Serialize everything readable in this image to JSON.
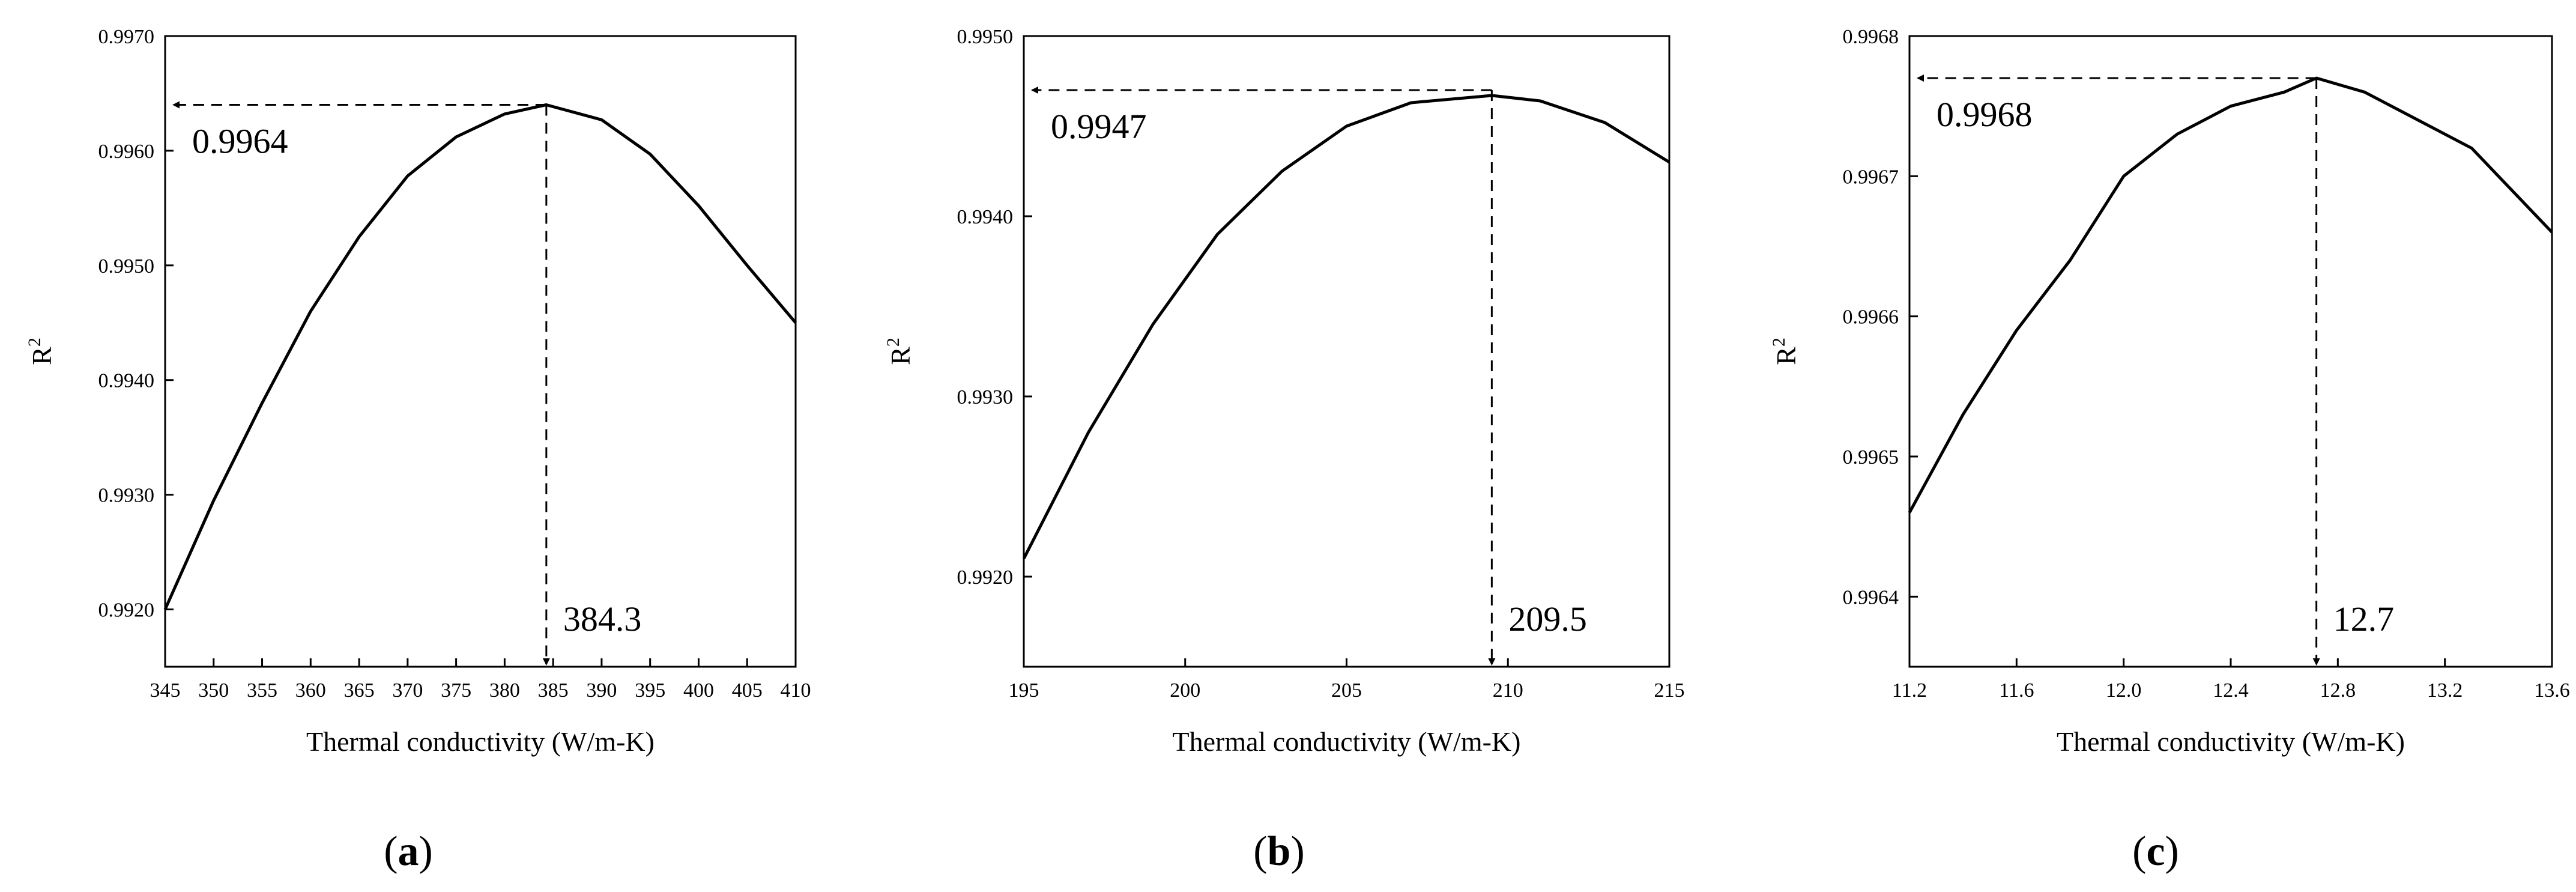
{
  "chart_data": [
    {
      "type": "line",
      "panel_label": "(a)",
      "panel_letter": "a",
      "xlabel": "Thermal conductivity (W/m-K)",
      "ylabel": "R",
      "ylabel_sup": "2",
      "xlim": [
        345,
        410
      ],
      "ylim": [
        0.9915,
        0.997
      ],
      "x_ticks": [
        "345",
        "350",
        "355",
        "360",
        "365",
        "370",
        "375",
        "380",
        "385",
        "390",
        "395",
        "400",
        "405",
        "410"
      ],
      "y_ticks": [
        "0.9920",
        "0.9930",
        "0.9940",
        "0.9950",
        "0.9960",
        "0.9970"
      ],
      "series": [
        {
          "x": [
            345,
            350,
            355,
            360,
            365,
            370,
            375,
            380,
            384.3,
            390,
            395,
            400,
            405,
            410
          ],
          "y": [
            0.992,
            0.99295,
            0.9938,
            0.9946,
            0.99525,
            0.99578,
            0.99612,
            0.99632,
            0.9964,
            0.99627,
            0.99597,
            0.99552,
            0.995,
            0.9945
          ]
        }
      ],
      "peak": {
        "x": 384.3,
        "y": 0.9964,
        "x_label": "384.3",
        "y_label": "0.9964"
      }
    },
    {
      "type": "line",
      "panel_label": "(b)",
      "panel_letter": "b",
      "xlabel": "Thermal conductivity (W/m-K)",
      "ylabel": "R",
      "ylabel_sup": "2",
      "xlim": [
        195,
        215
      ],
      "ylim": [
        0.9915,
        0.995
      ],
      "x_ticks": [
        "195",
        "200",
        "205",
        "210",
        "215"
      ],
      "y_ticks": [
        "0.9920",
        "0.9930",
        "0.9940",
        "0.9950"
      ],
      "series": [
        {
          "x": [
            195,
            197,
            199,
            201,
            203,
            205,
            207,
            209.5,
            211,
            213,
            215
          ],
          "y": [
            0.9921,
            0.9928,
            0.9934,
            0.9939,
            0.99425,
            0.9945,
            0.99463,
            0.99467,
            0.99464,
            0.99452,
            0.9943
          ]
        }
      ],
      "peak": {
        "x": 209.5,
        "y": 0.9947,
        "x_label": "209.5",
        "y_label": "0.9947"
      }
    },
    {
      "type": "line",
      "panel_label": "(c)",
      "panel_letter": "c",
      "xlabel": "Thermal conductivity (W/m-K)",
      "ylabel": "R",
      "ylabel_sup": "2",
      "xlim": [
        11.2,
        13.6
      ],
      "ylim": [
        0.99635,
        0.9968
      ],
      "x_ticks": [
        "11.2",
        "11.6",
        "12.0",
        "12.4",
        "12.8",
        "13.2",
        "13.6"
      ],
      "y_ticks": [
        "0.9964",
        "0.9965",
        "0.9966",
        "0.9967",
        "0.9968"
      ],
      "series": [
        {
          "x": [
            11.2,
            11.4,
            11.6,
            11.8,
            12.0,
            12.2,
            12.4,
            12.6,
            12.72,
            12.9,
            13.1,
            13.3,
            13.5,
            13.6
          ],
          "y": [
            0.99646,
            0.99653,
            0.99659,
            0.99664,
            0.9967,
            0.99673,
            0.99675,
            0.99676,
            0.99677,
            0.99676,
            0.99674,
            0.99672,
            0.99668,
            0.99666
          ]
        }
      ],
      "peak": {
        "x": 12.72,
        "y": 0.99677,
        "x_label": "12.7",
        "y_label": "0.9968"
      }
    }
  ]
}
